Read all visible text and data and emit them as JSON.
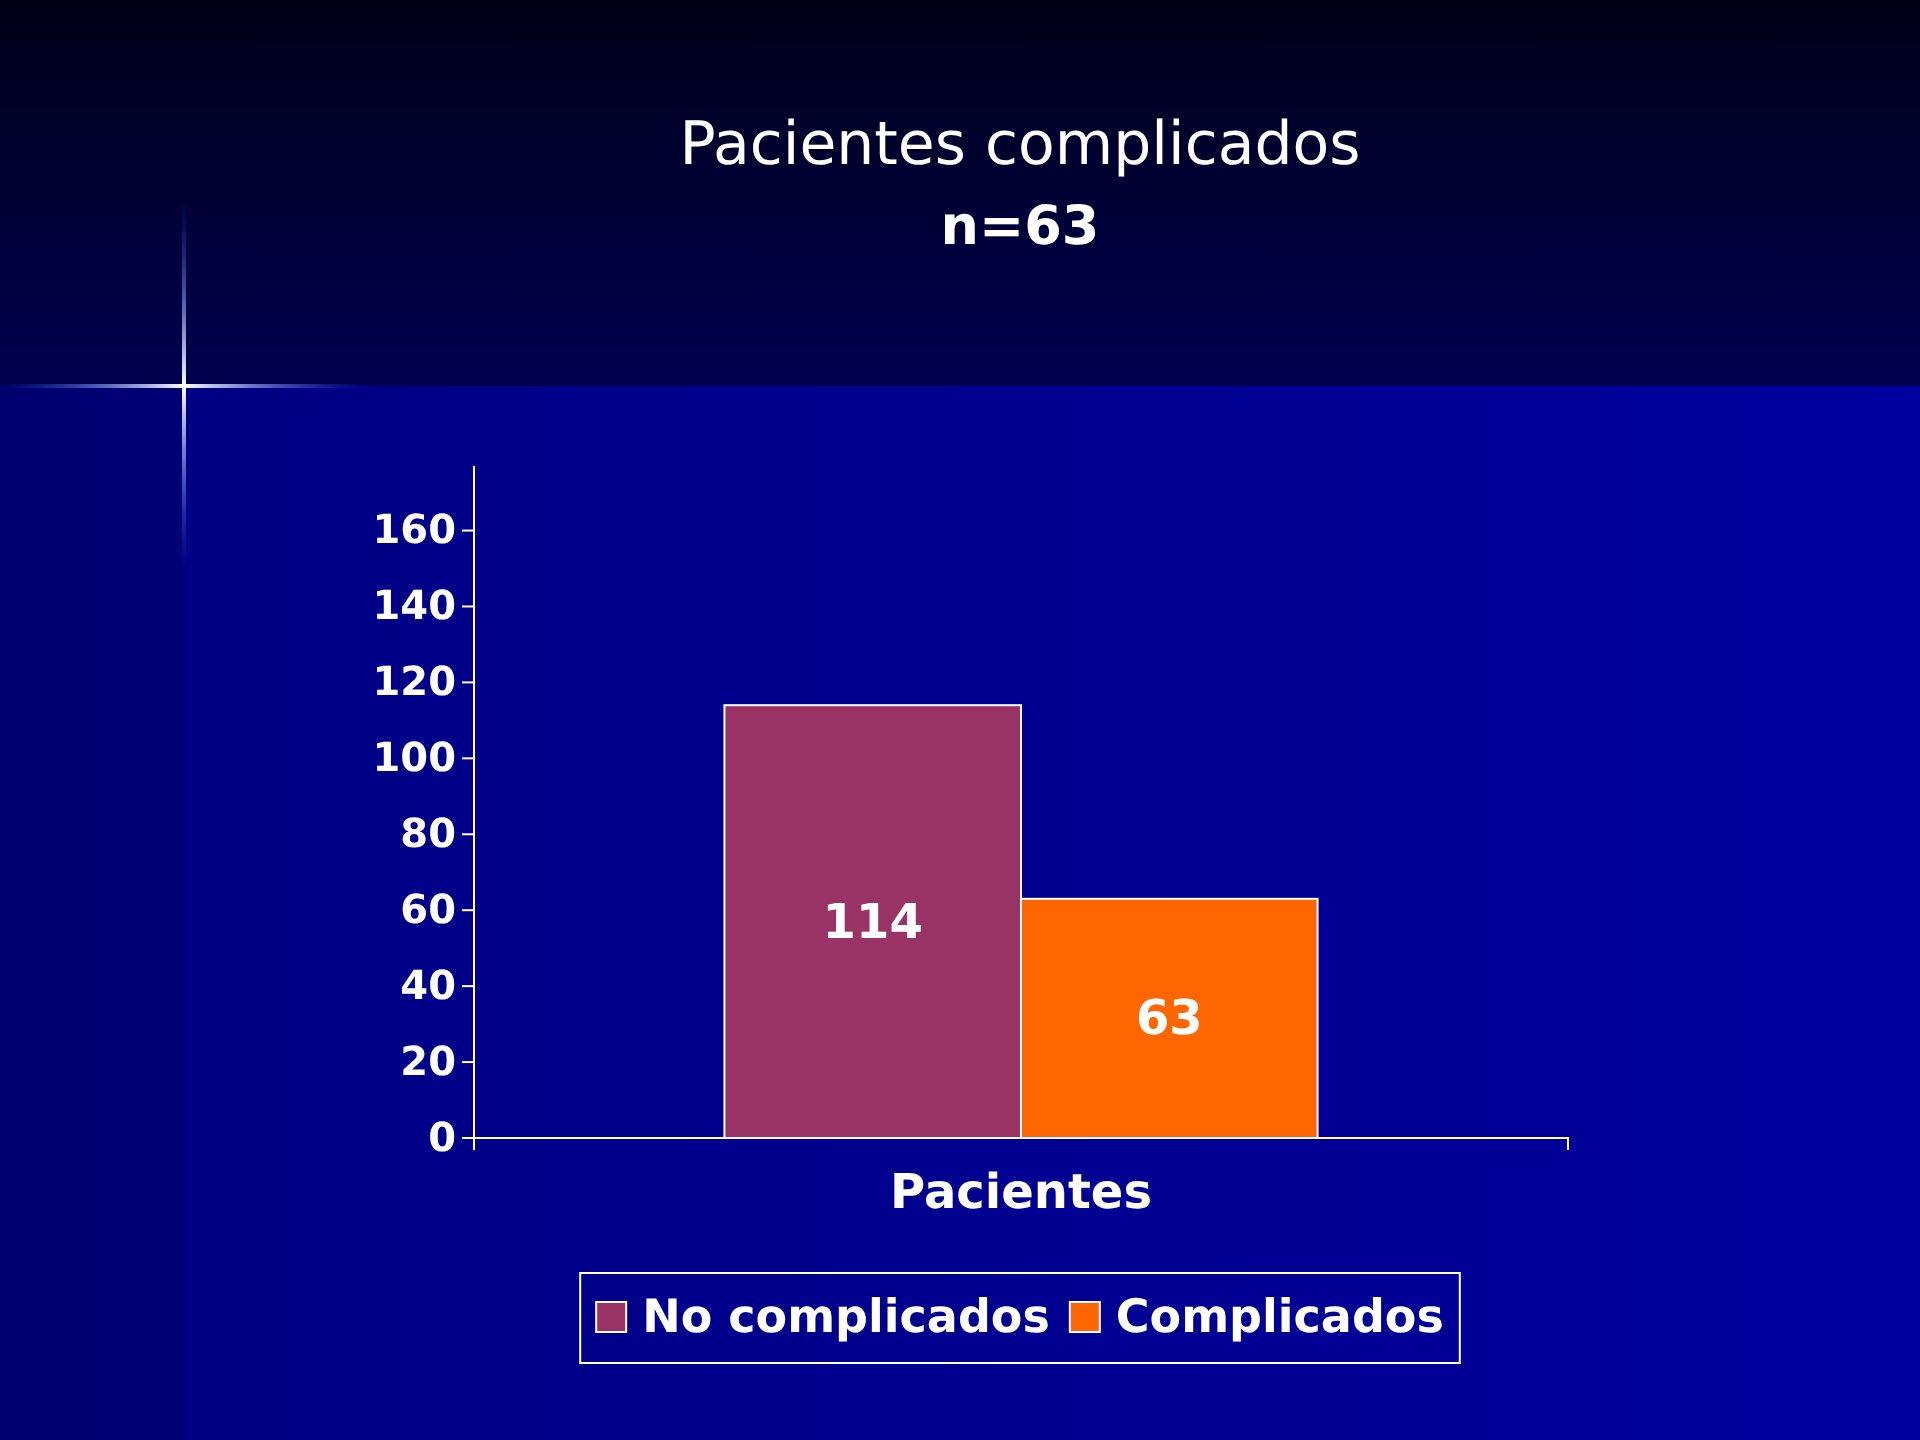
{
  "chart_data": {
    "type": "bar",
    "title": "Pacientes complicados",
    "subtitle": "n=63",
    "categories": [
      "Pacientes"
    ],
    "series": [
      {
        "name": "No complicados",
        "color": "#993366",
        "values": [
          114
        ]
      },
      {
        "name": "Complicados",
        "color": "#ff6600",
        "values": [
          63
        ]
      }
    ],
    "ylim": [
      0,
      177
    ],
    "yticks": [
      0,
      20,
      40,
      60,
      80,
      100,
      120,
      140,
      160
    ],
    "data_labels": true,
    "legend": "bottom"
  }
}
